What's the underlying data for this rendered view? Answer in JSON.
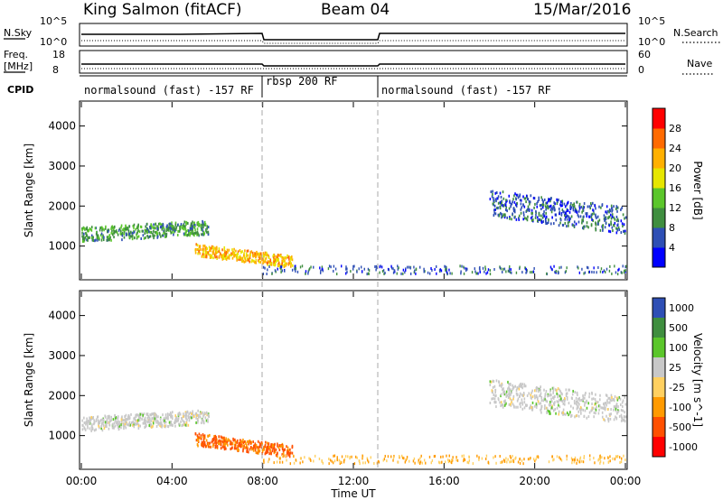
{
  "header": {
    "station": "King Salmon (fitACF)",
    "beam": "Beam 04",
    "date": "15/Mar/2016"
  },
  "panels": {
    "noise": {
      "left_label": "N.Sky",
      "right_label": "N.Search",
      "left_ticks": [
        "10^5",
        "10^0"
      ],
      "right_ticks": [
        "10^5",
        "10^0"
      ]
    },
    "freq": {
      "left_label_1": "Freq.",
      "left_label_2": "[MHz]",
      "right_label": "Nave",
      "left_ticks": [
        "18",
        "8"
      ],
      "right_ticks": [
        "60",
        "0"
      ]
    },
    "cpid": {
      "label": "CPID",
      "segments": [
        {
          "label": "normalsound (fast) -157 RF",
          "start_h": 0.0,
          "end_h": 8.0
        },
        {
          "label": "rbsp 200 RF",
          "start_h": 8.0,
          "end_h": 13.0
        },
        {
          "label": "normalsound (fast) -157 RF",
          "start_h": 13.0,
          "end_h": 24.0
        }
      ]
    }
  },
  "chart_data": [
    {
      "type": "heatmap",
      "title": "",
      "ylabel": "Slant Range [km]",
      "xlabel": "",
      "ylim": [
        180,
        4600
      ],
      "y_ticks": [
        1000,
        2000,
        3000,
        4000
      ],
      "colorbar": {
        "label": "Power [dB]",
        "range": [
          0,
          30
        ],
        "ticks": [
          "4",
          "8",
          "12",
          "16",
          "20",
          "24",
          "28"
        ],
        "colors": [
          "#0000ff",
          "#2e4fb5",
          "#3f8e3f",
          "#5bc62b",
          "#e6e600",
          "#ffb000",
          "#ff6a00",
          "#ff0000"
        ]
      },
      "features": [
        {
          "desc": "near-range band",
          "start_h": 0.0,
          "end_h": 5.6,
          "range_km": [
            1100,
            1700
          ],
          "level": 10
        },
        {
          "desc": "day-side scatter",
          "start_h": 5.0,
          "end_h": 9.3,
          "range_km": [
            500,
            1000
          ],
          "level": 20
        },
        {
          "desc": "evening band",
          "start_h": 18.0,
          "end_h": 24.0,
          "range_km": [
            1300,
            2400
          ],
          "level": 6
        }
      ]
    },
    {
      "type": "heatmap",
      "title": "",
      "ylabel": "Slant Range [km]",
      "xlabel": "Time UT",
      "ylim": [
        180,
        4600
      ],
      "y_ticks": [
        1000,
        2000,
        3000,
        4000
      ],
      "x_ticks": [
        "00:00",
        "04:00",
        "08:00",
        "12:00",
        "16:00",
        "20:00",
        "00:00"
      ],
      "colorbar": {
        "label": "Velocity [m s^-1]",
        "ticks": [
          "1000",
          "500",
          "100",
          "25",
          "-25",
          "-100",
          "-500",
          "-1000"
        ],
        "colors": [
          "#2e4fb5",
          "#3f8e3f",
          "#5bc62b",
          "#c8c8c8",
          "#ffd060",
          "#ff9a00",
          "#ff5000",
          "#ff0000"
        ]
      },
      "features": [
        {
          "desc": "ground scatter band",
          "start_h": 0.0,
          "end_h": 5.6,
          "range_km": [
            1100,
            1700
          ],
          "velocity": 0
        },
        {
          "desc": "receding flow",
          "start_h": 5.0,
          "end_h": 9.3,
          "range_km": [
            500,
            1000
          ],
          "velocity": -300
        },
        {
          "desc": "evening ground scatter",
          "start_h": 18.0,
          "end_h": 24.0,
          "range_km": [
            1300,
            2400
          ],
          "velocity": 0
        }
      ]
    }
  ]
}
